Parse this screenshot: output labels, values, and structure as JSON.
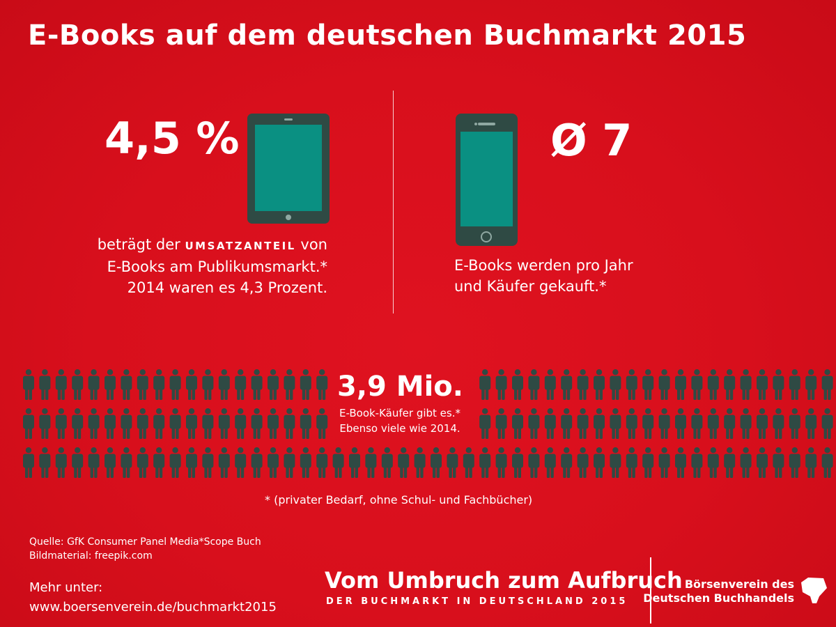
{
  "title": "E-Books auf dem deutschen Buchmarkt 2015",
  "stat_left": {
    "value": "4,5 %",
    "desc_pre": "beträgt der ",
    "desc_caps": "UMSATZANTEIL",
    "desc_post": " von",
    "desc_line2": "E-Books am Publikumsmarkt.*",
    "desc_line3": "2014 waren es 4,3 Prozent.",
    "icon": "tablet-icon"
  },
  "stat_right": {
    "value": "Ø 7",
    "desc_line1": "E-Books werden pro Jahr",
    "desc_line2": "und Käufer gekauft.*",
    "icon": "smartphone-icon"
  },
  "buyers": {
    "value": "3,9 Mio.",
    "desc_line1": "E-Book-Käufer gibt es.*",
    "desc_line2": "Ebenso viele wie 2014.",
    "icon": "person-icon",
    "icon_color": "#2f4a44"
  },
  "footnote": "* (privater Bedarf, ohne Schul- und Fachbücher)",
  "source": {
    "line1": "Quelle: GfK Consumer Panel Media*Scope Buch",
    "line2": "Bildmaterial: freepik.com"
  },
  "more": {
    "label": "Mehr unter:",
    "url": "www.boersenverein.de/buchmarkt2015"
  },
  "campaign": {
    "title": "Vom Umbruch zum Aufbruch",
    "subtitle": "DER BUCHMARKT IN DEUTSCHLAND 2015"
  },
  "org": {
    "line1": "Börsenverein des",
    "line2": "Deutschen Buchhandels",
    "logo": "boersenverein-logo"
  },
  "colors": {
    "background": "#d80f1c",
    "device_frame": "#2f4a44",
    "device_screen": "#0a9082",
    "text": "#ffffff"
  }
}
